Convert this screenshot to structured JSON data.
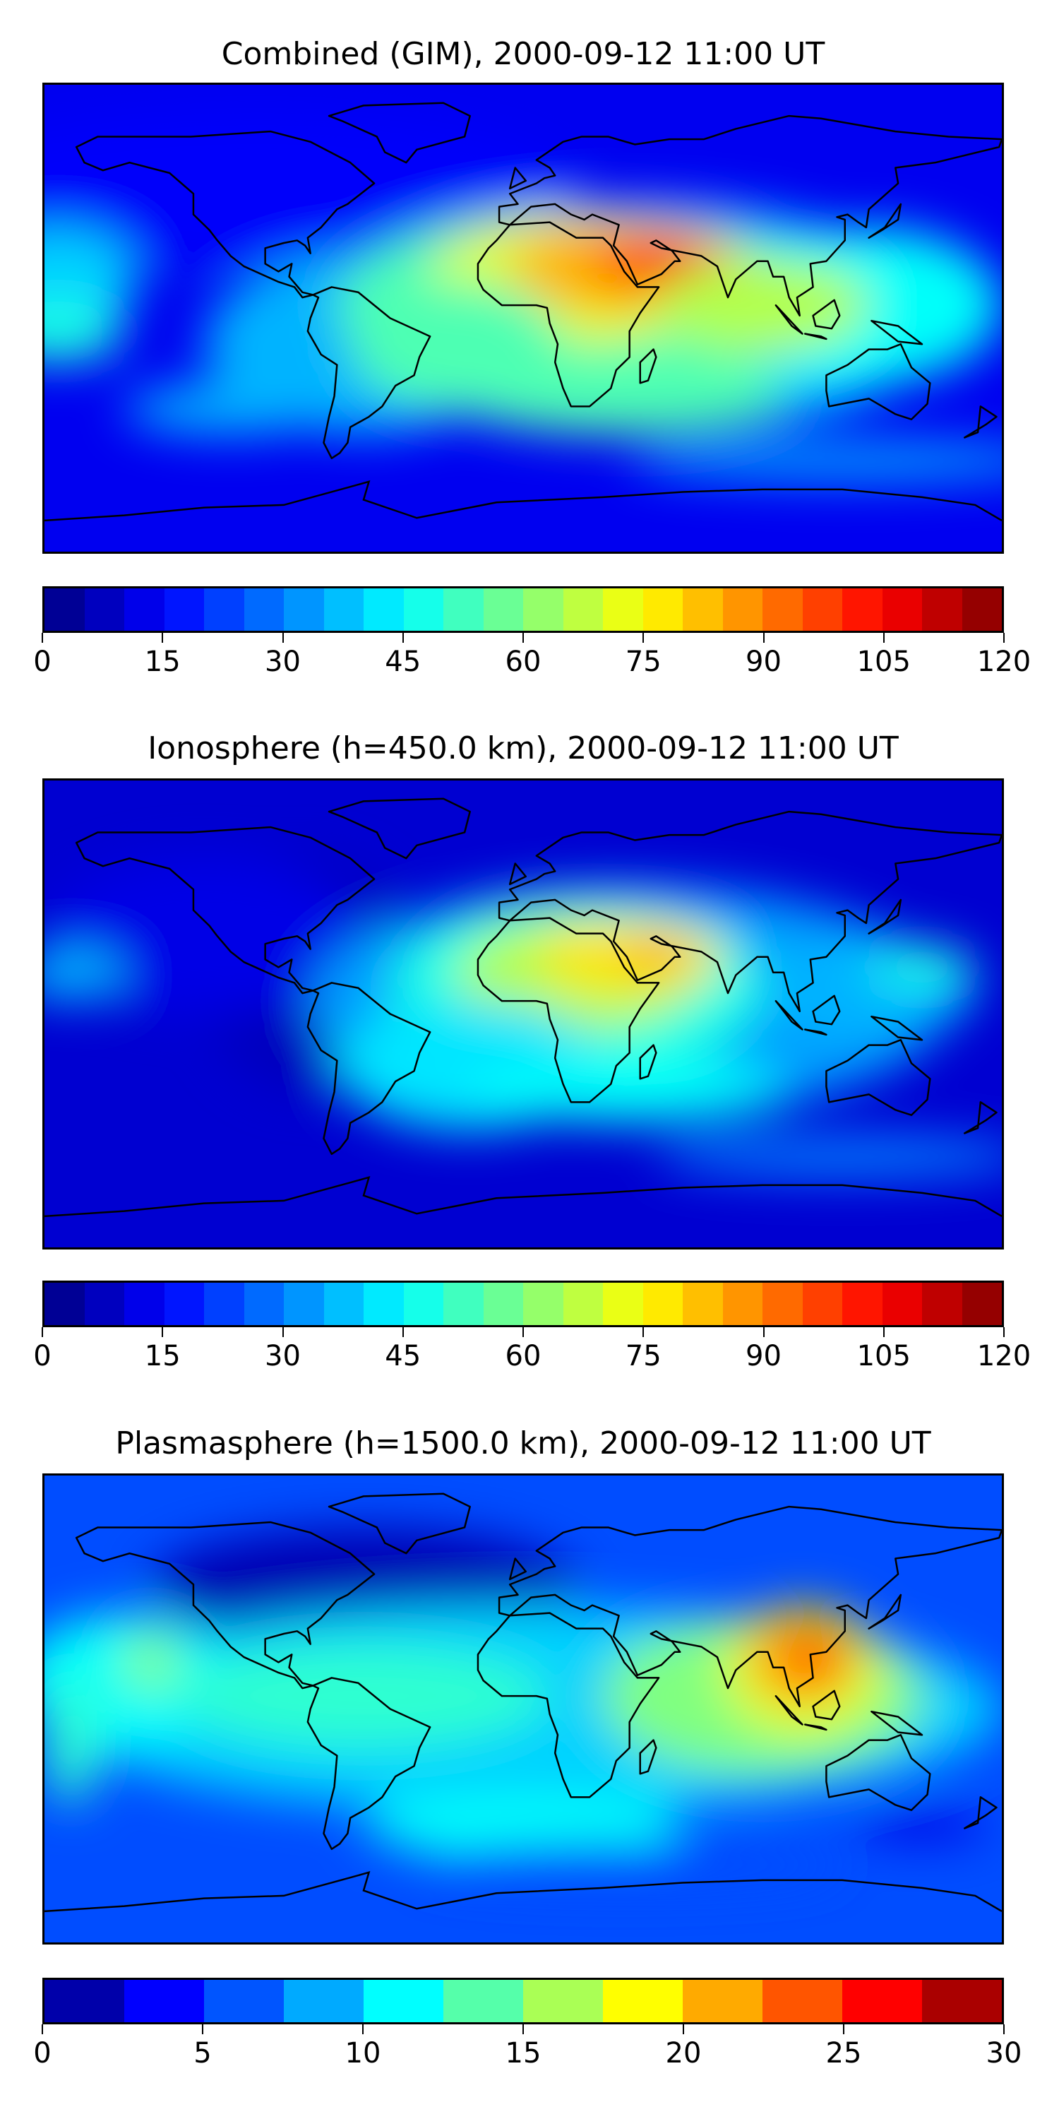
{
  "panels": [
    {
      "title": "Combined (GIM), 2000-09-12 11:00 UT",
      "colorbar": {
        "min": 0,
        "max": 120,
        "step": 5,
        "ticks": [
          "0",
          "15",
          "30",
          "45",
          "60",
          "75",
          "90",
          "105",
          "120"
        ]
      }
    },
    {
      "title": "Ionosphere  (h=450.0 km), 2000-09-12 11:00 UT",
      "colorbar": {
        "min": 0,
        "max": 120,
        "step": 5,
        "ticks": [
          "0",
          "15",
          "30",
          "45",
          "60",
          "75",
          "90",
          "105",
          "120"
        ]
      }
    },
    {
      "title": "Plasmasphere (h=1500.0 km), 2000-09-12 11:00 UT",
      "colorbar": {
        "min": 0,
        "max": 30,
        "step": 2.5,
        "ticks": [
          "0",
          "5",
          "10",
          "15",
          "20",
          "25",
          "30"
        ]
      }
    }
  ],
  "chart_data": [
    {
      "type": "heatmap",
      "title": "Combined (GIM), 2000-09-12 11:00 UT",
      "projection": "equirectangular",
      "xlim": [
        -180,
        180
      ],
      "ylim": [
        -90,
        90
      ],
      "colormap": "jet",
      "clim": [
        0,
        120
      ],
      "levels_step": 5,
      "peak_region": "Arabian Peninsula / Red Sea",
      "peak_value_approx": 105
    },
    {
      "type": "heatmap",
      "title": "Ionosphere  (h=450.0 km), 2000-09-12 11:00 UT",
      "projection": "equirectangular",
      "xlim": [
        -180,
        180
      ],
      "ylim": [
        -90,
        90
      ],
      "colormap": "jet",
      "clim": [
        0,
        120
      ],
      "levels_step": 5,
      "peak_region": "Arabian Peninsula",
      "peak_value_approx": 90
    },
    {
      "type": "heatmap",
      "title": "Plasmasphere (h=1500.0 km), 2000-09-12 11:00 UT",
      "projection": "equirectangular",
      "xlim": [
        -180,
        180
      ],
      "ylim": [
        -90,
        90
      ],
      "colormap": "jet",
      "clim": [
        0,
        30
      ],
      "levels_step": 2.5,
      "peak_region": "Southeast Asia",
      "peak_value_approx": 25
    }
  ]
}
